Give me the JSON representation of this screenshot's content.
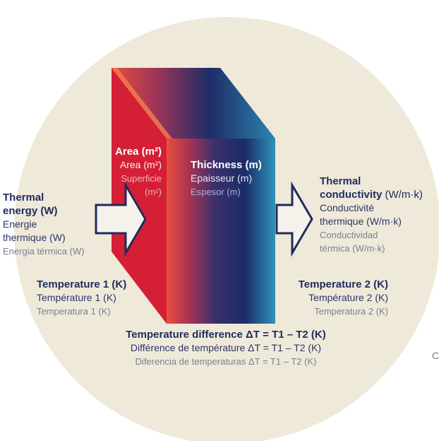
{
  "colors": {
    "background_circle": "#efe9d9",
    "block_front": "#d41f36",
    "block_side_dark": "#1b2960",
    "block_side_light": "#2f8fb8",
    "text_primary": "#1f2b5c",
    "text_muted": "#7a7f92",
    "arrow_fill": "#f5f2ec",
    "arrow_stroke": "#1f2b5c"
  },
  "area": {
    "en": "Area (m²)",
    "fr": "Area (m²)",
    "es_line1": "Superficie",
    "es_line2": "(m²)"
  },
  "thickness": {
    "en": "Thickness (m)",
    "fr": "Epaisseur (m)",
    "es": "Espesor (m)"
  },
  "thermal_energy": {
    "en_line1": "Thermal",
    "en_line2": "energy (W)",
    "fr_line1": "Energie",
    "fr_line2": "thermique (W)",
    "es": "Energia térmica (W)"
  },
  "thermal_conductivity": {
    "en_line1": "Thermal",
    "en_line2_bold": "conductivity",
    "en_line2_unit": "(W/m·k)",
    "fr_line1": "Conductivité",
    "fr_line2": "thermique (W/m·k)",
    "es_line1": "Conductividad",
    "es_line2": "térmica (W/m·k)"
  },
  "temperature_1": {
    "en": "Temperature 1  (K)",
    "fr": "Température 1 (K)",
    "es": "Temperatura 1 (K)"
  },
  "temperature_2": {
    "en": "Temperature 2  (K)",
    "fr": "Température 2 (K)",
    "es": "Temperatura 2 (K)"
  },
  "temperature_difference": {
    "en": "Temperature difference ΔT = T1 – T2 (K)",
    "fr": "Différence de température ΔT = T1 – T2 (K)",
    "es": "Diferencia de temperaturas ΔT = T1 – T2 (K)"
  },
  "edge_fragment": "C"
}
